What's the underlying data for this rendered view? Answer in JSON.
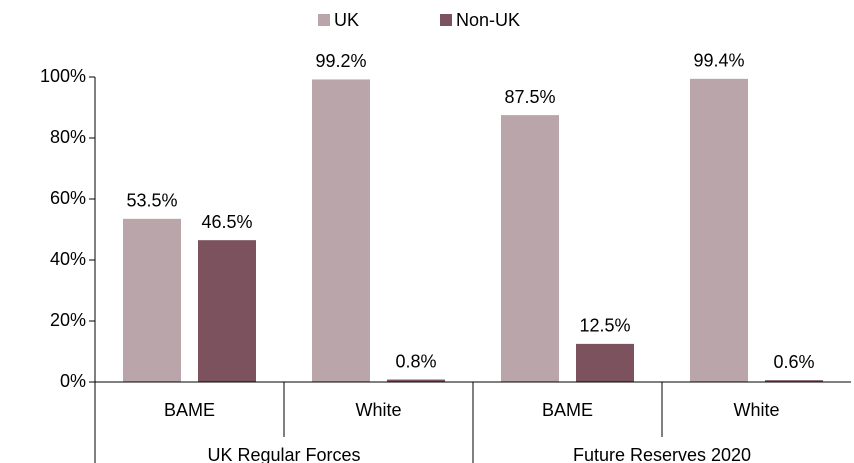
{
  "chart_data": {
    "type": "bar",
    "categories": [
      "BAME",
      "White",
      "BAME",
      "White"
    ],
    "groups": [
      "UK Regular Forces",
      "Future Reserves 2020"
    ],
    "series": [
      {
        "name": "UK",
        "color": "#baa6aa",
        "values": [
          53.5,
          99.2,
          87.5,
          99.4
        ],
        "value_labels": [
          "53.5%",
          "99.2%",
          "87.5%",
          "99.4%"
        ]
      },
      {
        "name": "Non-UK",
        "color": "#7b525e",
        "values": [
          46.5,
          0.8,
          12.5,
          0.6
        ],
        "value_labels": [
          "46.5%",
          "0.8%",
          "12.5%",
          "0.6%"
        ]
      }
    ],
    "ylim": [
      0,
      100
    ],
    "yticks": [
      {
        "value": 0,
        "label": "0%"
      },
      {
        "value": 20,
        "label": "20%"
      },
      {
        "value": 40,
        "label": "40%"
      },
      {
        "value": 60,
        "label": "60%"
      },
      {
        "value": 80,
        "label": "80%"
      },
      {
        "value": 100,
        "label": "100%"
      }
    ],
    "legend": "top"
  }
}
